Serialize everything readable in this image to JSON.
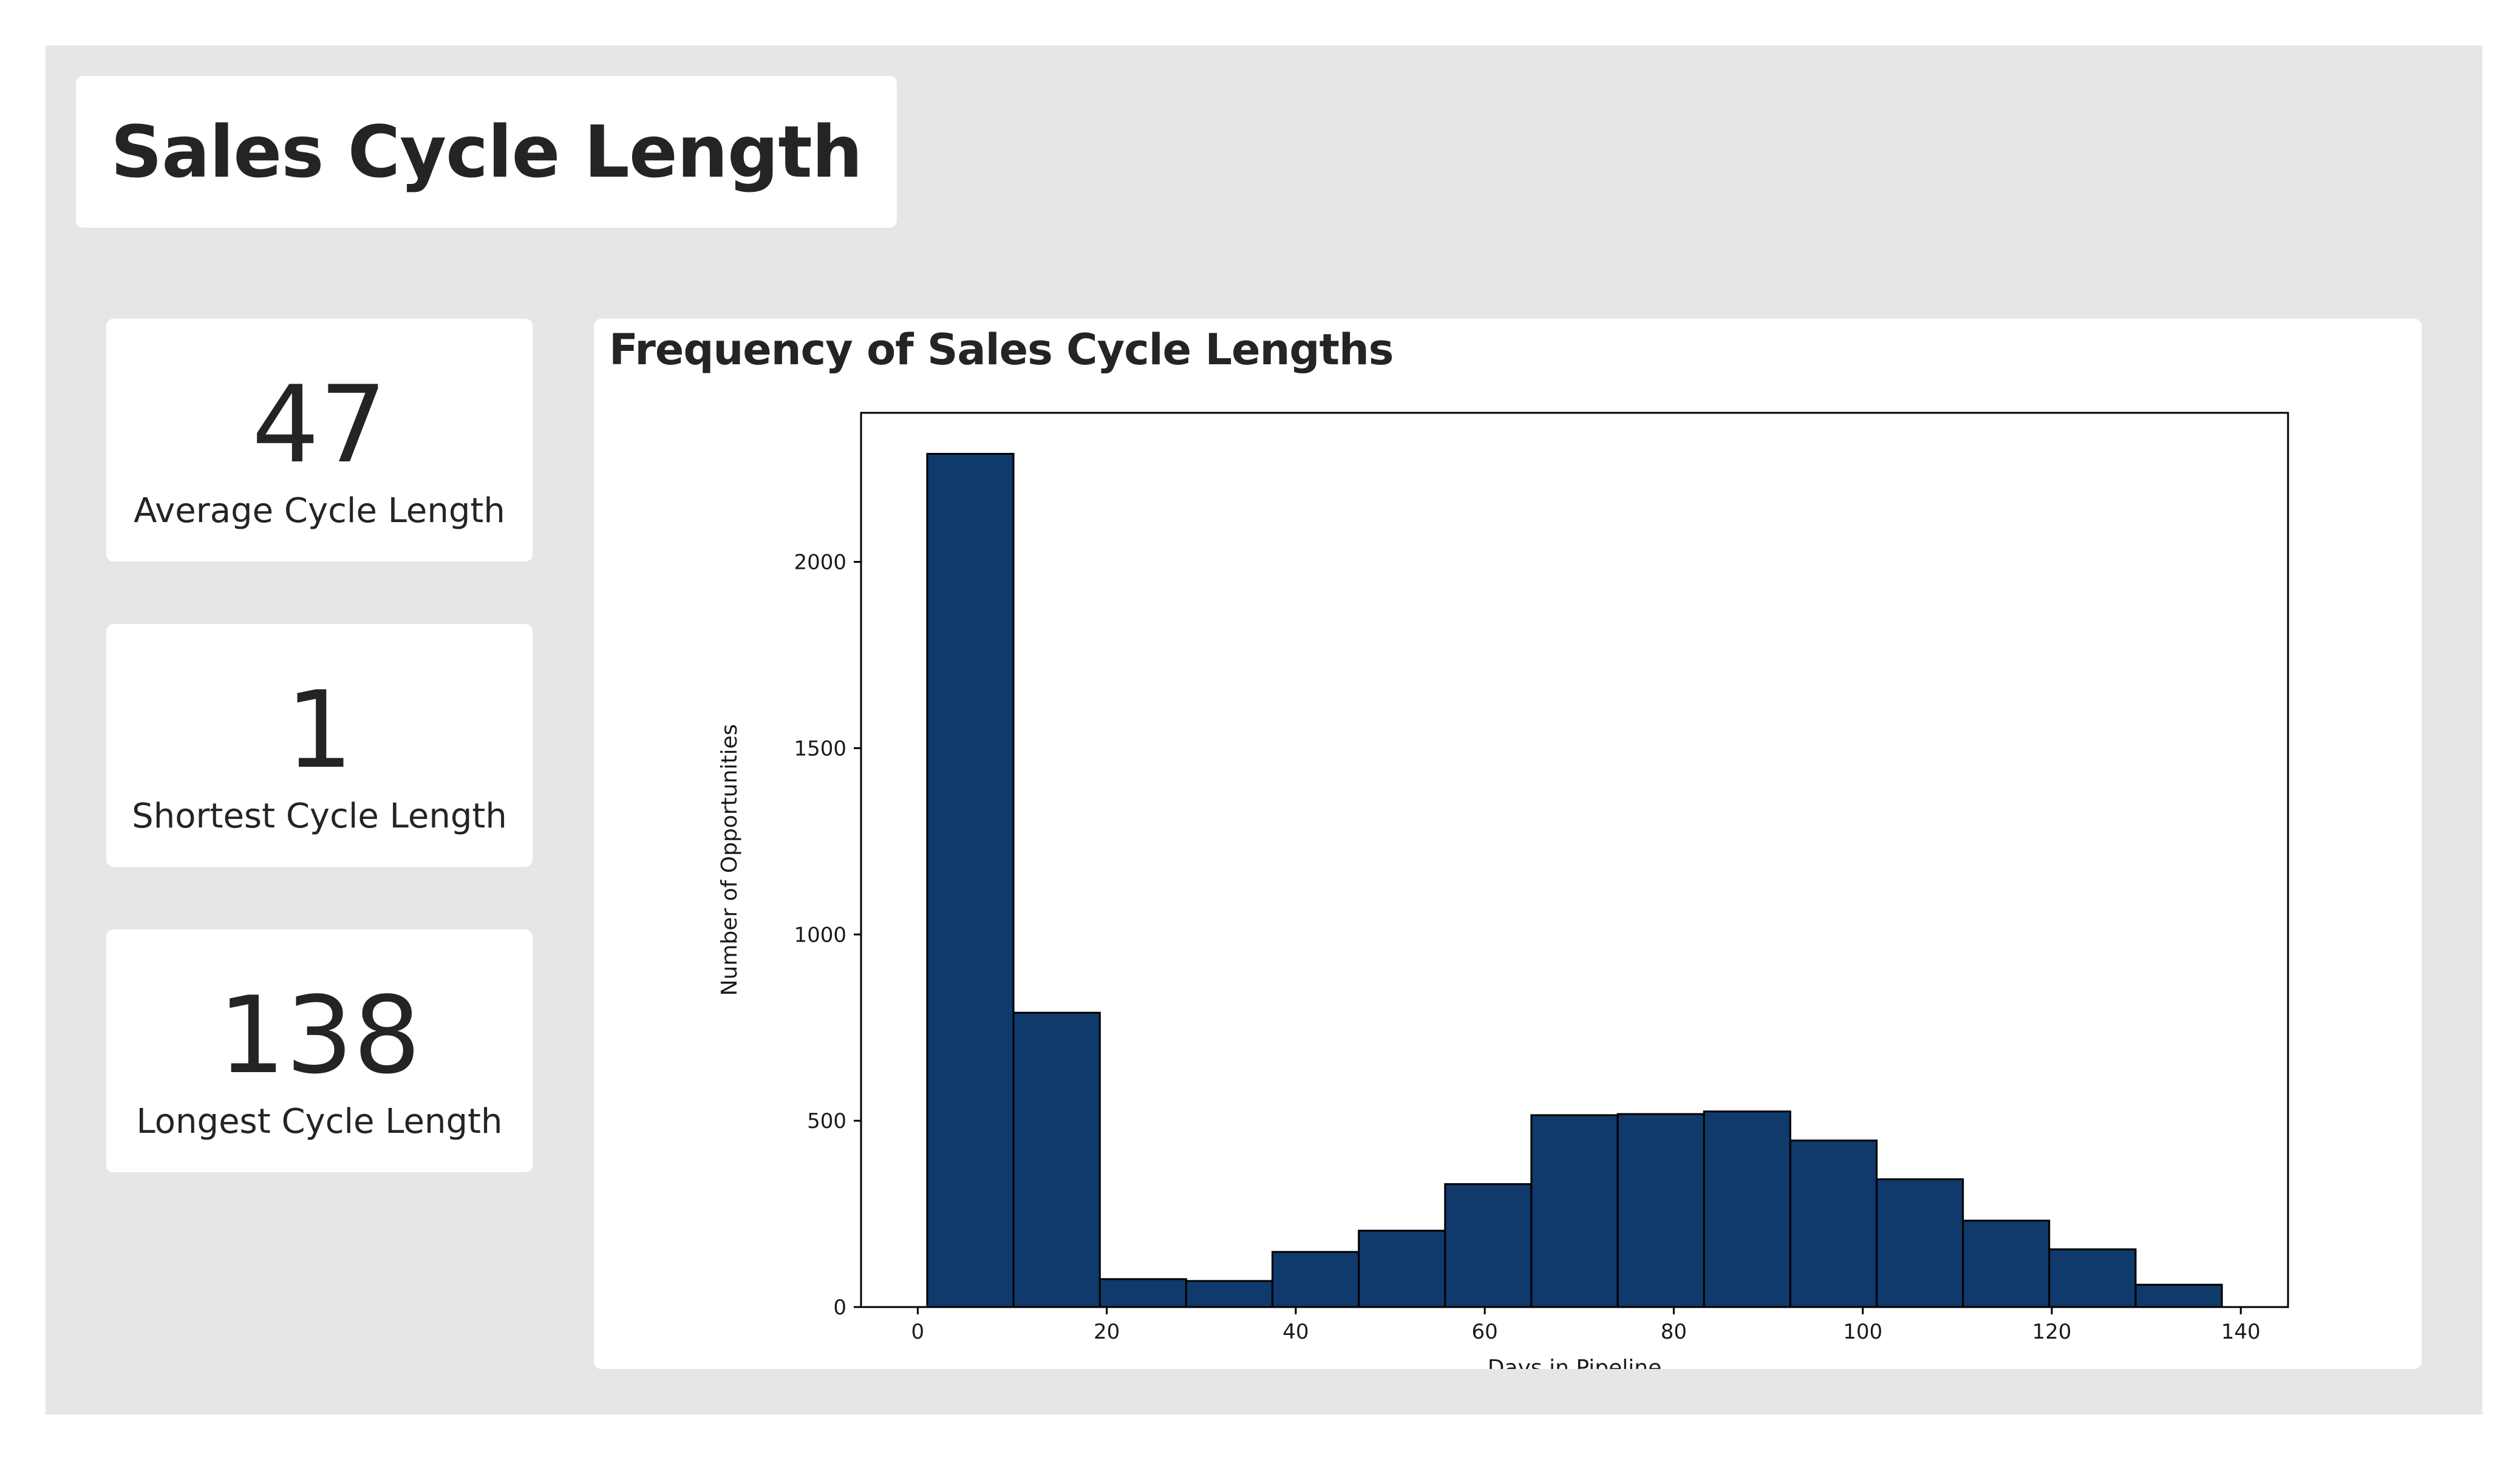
{
  "dashboard": {
    "title": "Sales Cycle Length",
    "kpis": [
      {
        "value": "47",
        "label": "Average Cycle Length"
      },
      {
        "value": "1",
        "label": "Shortest Cycle Length"
      },
      {
        "value": "138",
        "label": "Longest Cycle Length"
      }
    ]
  },
  "chart_data": {
    "type": "bar",
    "title": "Frequency of Sales Cycle Lengths",
    "xlabel": "Days in Pipeline",
    "ylabel": "Number of Opportunities",
    "bin_edges": [
      1,
      10.13,
      19.27,
      28.4,
      37.53,
      46.67,
      55.8,
      64.93,
      74.07,
      83.2,
      92.33,
      101.47,
      110.6,
      119.73,
      128.87,
      138
    ],
    "values": [
      2290,
      790,
      75,
      70,
      148,
      205,
      330,
      515,
      518,
      525,
      447,
      343,
      232,
      155,
      60
    ],
    "xlim": [
      -6,
      145
    ],
    "ylim": [
      0,
      2400
    ],
    "xticks": [
      0,
      20,
      40,
      60,
      80,
      100,
      120,
      140
    ],
    "yticks": [
      0,
      500,
      1000,
      1500,
      2000
    ],
    "grid": false,
    "colors": {
      "bar_fill": "#0f3a6b",
      "bar_edge": "#000000"
    }
  }
}
